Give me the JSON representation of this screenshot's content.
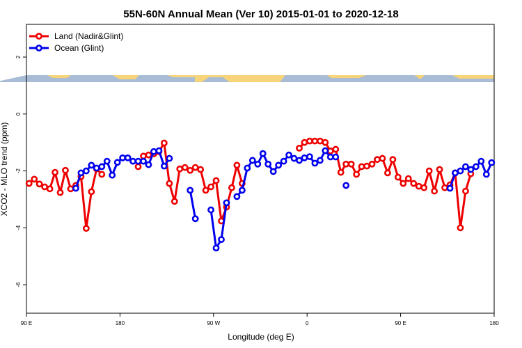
{
  "chart_data": {
    "type": "line",
    "title": "55N-60N Annual Mean (Ver 10)   2015-01-01 to 2020-12-18",
    "x_label": "Longitude (deg E)",
    "y_label": "XCO2 - MLO trend (ppm)",
    "x": [
      92.5,
      97.5,
      102.5,
      107.5,
      112.5,
      117.5,
      122.5,
      127.5,
      132.5,
      137.5,
      142.5,
      147.5,
      152.5,
      157.5,
      162.5,
      167.5,
      172.5,
      177.5,
      182.5,
      187.5,
      192.5,
      197.5,
      202.5,
      207.5,
      212.5,
      217.5,
      222.5,
      227.5,
      232.5,
      237.5,
      242.5,
      247.5,
      252.5,
      257.5,
      262.5,
      267.5,
      272.5,
      277.5,
      282.5,
      287.5,
      292.5,
      297.5,
      302.5,
      307.5,
      312.5,
      317.5,
      322.5,
      327.5,
      332.5,
      337.5,
      342.5,
      347.5,
      352.5,
      357.5,
      362.5,
      367.5,
      372.5,
      377.5,
      382.5,
      387.5,
      392.5,
      397.5,
      402.5,
      407.5,
      412.5,
      417.5,
      422.5,
      427.5,
      432.5,
      437.5,
      442.5,
      447.5,
      452.5,
      457.5,
      462.5,
      467.5,
      472.5,
      477.5,
      482.5,
      487.5,
      492.5,
      497.5,
      502.5,
      507.5,
      512.5,
      517.5,
      522.5,
      527.5,
      532.5,
      537.5
    ],
    "series": [
      {
        "name": "Land (Nadir&Glint)",
        "color": "#ee0000",
        "values": [
          -2.44,
          -2.29,
          -2.46,
          -2.56,
          -2.63,
          -2.05,
          -2.76,
          -1.98,
          -2.63,
          -2.51,
          -2.2,
          -4.02,
          -2.73,
          -1.93,
          -2.12,
          null,
          null,
          null,
          null,
          null,
          null,
          -1.85,
          -1.48,
          -1.44,
          -1.4,
          -1.32,
          -1.02,
          -2.44,
          -3.07,
          -1.93,
          -1.88,
          -1.98,
          -1.88,
          -1.95,
          -2.68,
          -2.56,
          -2.34,
          -3.76,
          -3.27,
          -2.59,
          -1.8,
          -2.44,
          null,
          null,
          null,
          null,
          null,
          null,
          null,
          null,
          null,
          null,
          -1.2,
          -1.0,
          -0.95,
          -0.95,
          -0.95,
          -1.0,
          -1.3,
          -1.24,
          -2.05,
          -1.76,
          -1.76,
          -2.12,
          -1.85,
          -1.83,
          -1.76,
          -1.6,
          -1.56,
          -2.07,
          -1.6,
          -2.22,
          -2.44,
          -2.27,
          -2.44,
          -2.54,
          -2.59,
          -2.0,
          -2.71,
          -1.95,
          -2.59,
          -2.49,
          -2.07,
          -4.0,
          -2.71,
          -2.1,
          null,
          null,
          null,
          null
        ]
      },
      {
        "name": "Ocean (Glint)",
        "color": "#0000ee",
        "values": [
          null,
          null,
          null,
          null,
          null,
          null,
          null,
          null,
          null,
          -2.61,
          -2.07,
          -2.0,
          -1.8,
          -1.9,
          -1.85,
          -1.66,
          -2.15,
          -1.7,
          -1.54,
          -1.54,
          -1.66,
          -1.66,
          -1.66,
          -1.78,
          -1.32,
          -1.29,
          -1.83,
          -1.56,
          null,
          null,
          null,
          -2.68,
          -3.68,
          null,
          null,
          -3.37,
          -4.71,
          -4.41,
          -3.12,
          null,
          -2.9,
          -2.68,
          -1.9,
          -1.63,
          -1.76,
          -1.39,
          -1.76,
          -2.02,
          -1.8,
          -1.66,
          -1.44,
          -1.56,
          -1.63,
          -1.54,
          -1.5,
          -1.73,
          -1.63,
          -1.29,
          -1.51,
          -1.51,
          null,
          -2.51,
          null,
          null,
          null,
          null,
          null,
          null,
          null,
          null,
          null,
          null,
          null,
          null,
          null,
          null,
          null,
          null,
          null,
          null,
          null,
          -2.61,
          -2.07,
          -2.0,
          -1.85,
          -1.95,
          -1.85,
          -1.66,
          -2.12,
          -1.71
        ]
      }
    ],
    "xlim": [
      90,
      540
    ],
    "xticks": [
      {
        "value": 90,
        "label": "90 E"
      },
      180,
      {
        "value": 270,
        "label": "90 W"
      },
      {
        "value": 360,
        "label": "0"
      },
      {
        "value": 450,
        "label": "90 E"
      },
      {
        "value": 540,
        "label": "180"
      }
    ],
    "ylim": [
      -7,
      3.15
    ],
    "yticks": [
      2,
      0,
      -2,
      -4,
      -6
    ],
    "legend": "top-left"
  }
}
